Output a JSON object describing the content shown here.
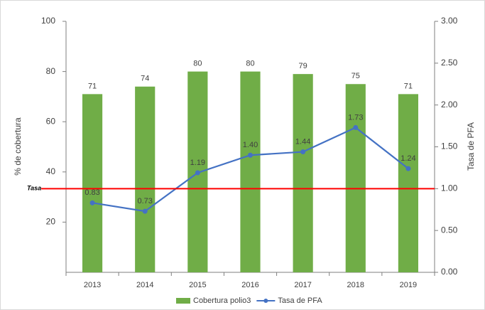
{
  "chart_data": {
    "type": "bar-line",
    "categories": [
      "2013",
      "2014",
      "2015",
      "2016",
      "2017",
      "2018",
      "2019"
    ],
    "series": [
      {
        "name": "Cobertura polio3",
        "type": "bar",
        "color": "#70ad47",
        "values": [
          71,
          74,
          80,
          80,
          79,
          75,
          71
        ]
      },
      {
        "name": "Tasa de PFA",
        "type": "line",
        "axis": "y2",
        "color": "#4472c4",
        "values": [
          0.83,
          0.73,
          1.19,
          1.4,
          1.44,
          1.73,
          1.24
        ],
        "value_labels": [
          "0.83",
          "0.73",
          "1.19",
          "1.40",
          "1.44",
          "1.73",
          "1.24"
        ]
      }
    ],
    "ylabel": "% de cobertura",
    "y2label": "Tasa de PFA",
    "ylim": [
      0,
      100
    ],
    "yticks": [
      20,
      40,
      60,
      80,
      100
    ],
    "y2lim": [
      0,
      3
    ],
    "y2ticks": [
      {
        "value": 0,
        "label": "0.00"
      },
      {
        "value": 0.5,
        "label": "0.50"
      },
      {
        "value": 1,
        "label": "1.00"
      },
      {
        "value": 1.5,
        "label": "1.50"
      },
      {
        "value": 2,
        "label": "2.00"
      },
      {
        "value": 2.5,
        "label": "2.50"
      },
      {
        "value": 3,
        "label": "3.00"
      }
    ],
    "reference_line": {
      "value": 1,
      "axis": "y2",
      "label": "Tasa",
      "color": "#ff0000"
    },
    "grid": false,
    "legend": "bottom"
  }
}
